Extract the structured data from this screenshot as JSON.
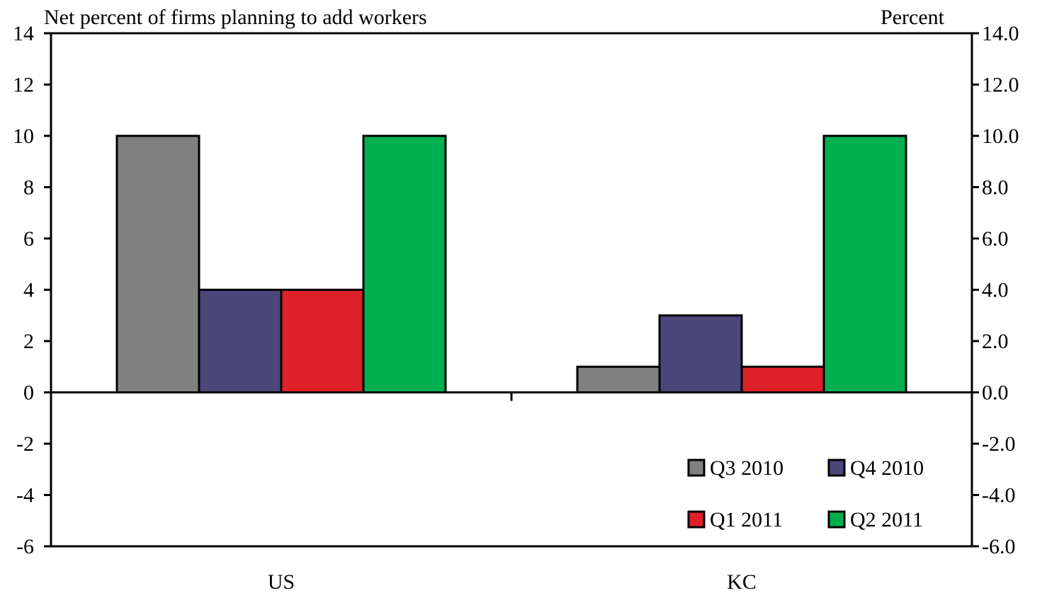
{
  "chart_data": {
    "type": "bar",
    "title_left": "Net percent of firms planning to add workers",
    "title_right": "Percent",
    "categories": [
      "US",
      "KC"
    ],
    "series": [
      {
        "name": "Q3 2010",
        "color": "#808080",
        "values": [
          10,
          1
        ]
      },
      {
        "name": "Q4 2010",
        "color": "#4B477A",
        "values": [
          4,
          3
        ]
      },
      {
        "name": "Q1 2011",
        "color": "#DC2128",
        "values": [
          4,
          1
        ]
      },
      {
        "name": "Q2 2011",
        "color": "#00B050",
        "values": [
          10,
          10
        ]
      }
    ],
    "ylim": [
      -6,
      14
    ],
    "left_ticks": [
      "14",
      "12",
      "10",
      "8",
      "6",
      "4",
      "2",
      "0",
      "-2",
      "-4",
      "-6"
    ],
    "right_ticks": [
      "14.0",
      "12.0",
      "10.0",
      "8.0",
      "6.0",
      "4.0",
      "2.0",
      "0.0",
      "-2.0",
      "-4.0",
      "-6.0"
    ],
    "tick_values": [
      14,
      12,
      10,
      8,
      6,
      4,
      2,
      0,
      -2,
      -4,
      -6
    ],
    "grid": false,
    "legend_position": "bottom-right"
  }
}
